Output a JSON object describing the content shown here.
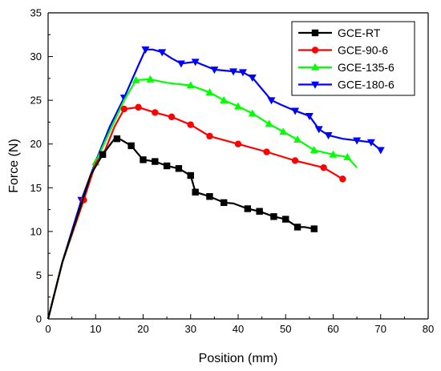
{
  "chart_data": {
    "type": "line",
    "title": "",
    "xlabel": "Position (mm)",
    "ylabel": "Force (N)",
    "xlim": [
      0,
      80
    ],
    "ylim": [
      0,
      35
    ],
    "x_ticks": [
      0,
      10,
      20,
      30,
      40,
      50,
      60,
      70,
      80
    ],
    "y_ticks": [
      0,
      5,
      10,
      15,
      20,
      25,
      30,
      35
    ],
    "grid": false,
    "legend_position": "top-right",
    "series": [
      {
        "name": "GCE-RT",
        "color": "#000000",
        "marker": "square",
        "points": [
          [
            0,
            0
          ],
          [
            3,
            6.5
          ],
          [
            6,
            11.5
          ],
          [
            9,
            16.5
          ],
          [
            11.5,
            18.8
          ],
          [
            14,
            20.6
          ],
          [
            15,
            20.6
          ],
          [
            17.5,
            19.8
          ],
          [
            20,
            18.2
          ],
          [
            22.5,
            18
          ],
          [
            25,
            17.5
          ],
          [
            27.5,
            17.2
          ],
          [
            30,
            16.4
          ],
          [
            31,
            14.5
          ],
          [
            34,
            14
          ],
          [
            37,
            13.3
          ],
          [
            39,
            13.2
          ],
          [
            42,
            12.6
          ],
          [
            44.5,
            12.3
          ],
          [
            47.5,
            11.7
          ],
          [
            50,
            11.4
          ],
          [
            52.5,
            10.5
          ],
          [
            54,
            10.5
          ],
          [
            56,
            10.3
          ]
        ],
        "marker_x": [
          11.5,
          14.5,
          17.5,
          20,
          22.5,
          25,
          27.5,
          30,
          31,
          34,
          37,
          42,
          44.5,
          47.5,
          50,
          52.5,
          56
        ]
      },
      {
        "name": "GCE-90-6",
        "color": "#ff0000",
        "marker": "circle",
        "points": [
          [
            0,
            0
          ],
          [
            3,
            6.5
          ],
          [
            7.5,
            13.6
          ],
          [
            10,
            17.8
          ],
          [
            12,
            19.3
          ],
          [
            14,
            22
          ],
          [
            16,
            24
          ],
          [
            19,
            24.2
          ],
          [
            22.5,
            23.6
          ],
          [
            26,
            23.1
          ],
          [
            30,
            22.2
          ],
          [
            34,
            20.9
          ],
          [
            40,
            20
          ],
          [
            46,
            19.1
          ],
          [
            52,
            18.1
          ],
          [
            58,
            17.3
          ],
          [
            62,
            16
          ]
        ],
        "marker_x": [
          7.5,
          16,
          19,
          22.5,
          26,
          30,
          34,
          40,
          46,
          52,
          58,
          62
        ]
      },
      {
        "name": "GCE-135-6",
        "color": "#00ff00",
        "marker": "triangle-up",
        "points": [
          [
            0,
            0
          ],
          [
            3,
            6.5
          ],
          [
            7.5,
            13.6
          ],
          [
            10,
            17.9
          ],
          [
            13,
            21.5
          ],
          [
            16,
            25
          ],
          [
            18.5,
            27.3
          ],
          [
            21.5,
            27.4
          ],
          [
            25,
            27
          ],
          [
            30,
            26.7
          ],
          [
            34,
            25.9
          ],
          [
            37,
            25
          ],
          [
            40,
            24.3
          ],
          [
            43,
            23.5
          ],
          [
            46.5,
            22.3
          ],
          [
            49.5,
            21.4
          ],
          [
            52.5,
            20.5
          ],
          [
            56,
            19.3
          ],
          [
            60,
            18.8
          ],
          [
            63,
            18.5
          ],
          [
            65,
            17.3
          ]
        ],
        "marker_x": [
          10,
          18.5,
          21.5,
          30,
          34,
          37,
          40,
          43,
          46.5,
          49.5,
          52.5,
          56,
          60,
          63
        ]
      },
      {
        "name": "GCE-180-6",
        "color": "#0000ff",
        "marker": "triangle-down",
        "points": [
          [
            0,
            0
          ],
          [
            3,
            6.5
          ],
          [
            7,
            13.6
          ],
          [
            10,
            18
          ],
          [
            13,
            22
          ],
          [
            16,
            25.3
          ],
          [
            19,
            29
          ],
          [
            20.5,
            30.8
          ],
          [
            22,
            30.8
          ],
          [
            24,
            30.5
          ],
          [
            26,
            29.8
          ],
          [
            28,
            29.2
          ],
          [
            31,
            29.4
          ],
          [
            35,
            28.5
          ],
          [
            39,
            28.3
          ],
          [
            41,
            28.2
          ],
          [
            43,
            27.6
          ],
          [
            45,
            26.3
          ],
          [
            47,
            25
          ],
          [
            49,
            24.5
          ],
          [
            52,
            23.8
          ],
          [
            55,
            23.2
          ],
          [
            57,
            21.7
          ],
          [
            59,
            21
          ],
          [
            62,
            20.6
          ],
          [
            65,
            20.4
          ],
          [
            68,
            20.2
          ],
          [
            70,
            19.3
          ]
        ],
        "marker_x": [
          7,
          16,
          20.5,
          24,
          28,
          31,
          35,
          39,
          41,
          43,
          47,
          52,
          55,
          57,
          59,
          65,
          68,
          70
        ]
      }
    ]
  }
}
